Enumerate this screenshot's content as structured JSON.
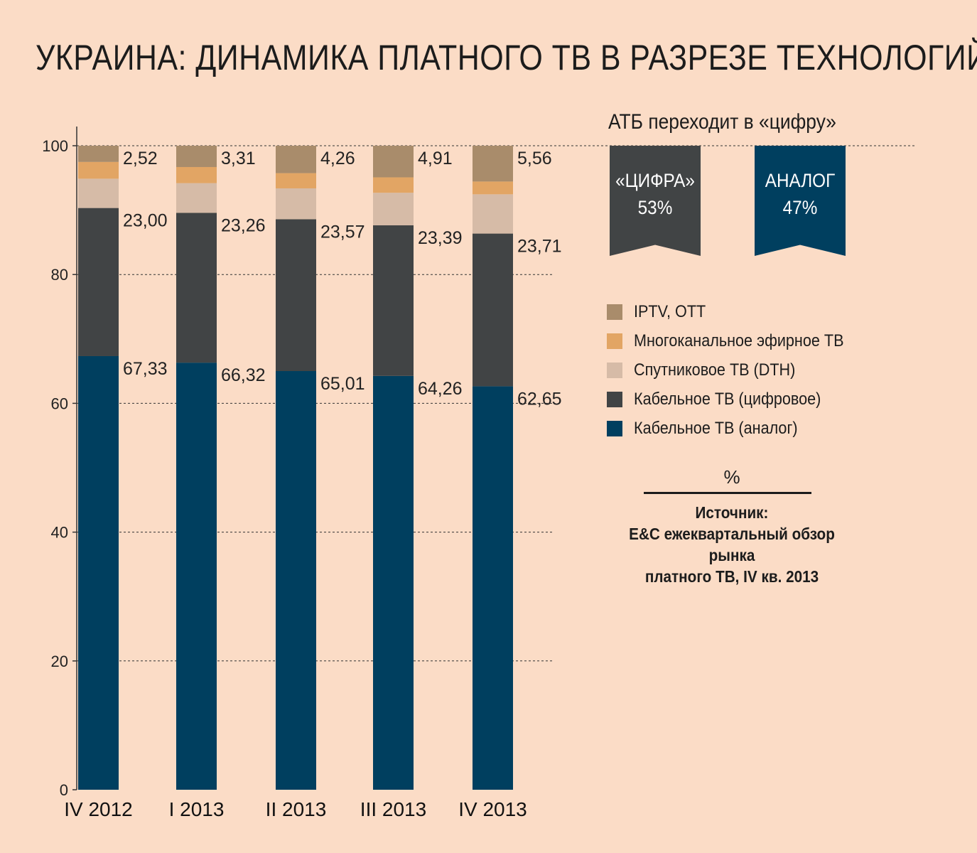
{
  "title": "УКРАИНА: ДИНАМИКА ПЛАТНОГО ТВ В РАЗРЕЗЕ ТЕХНОЛОГИЙ",
  "side_heading": "АТБ переходит в «цифру»",
  "ribbons": {
    "digital": {
      "label": "«ЦИФРА»",
      "value": "53%",
      "color": "#414445"
    },
    "analog": {
      "label": "АНАЛОГ",
      "value": "47%",
      "color": "#003f5f"
    }
  },
  "unit": "%",
  "source": {
    "label": "Источник:",
    "line1": "E&C ежеквартальный обзор рынка",
    "line2": "платного ТВ, IV кв. 2013"
  },
  "chart_data": {
    "type": "bar",
    "stacked": true,
    "categories": [
      "IV 2012",
      "I 2013",
      "II 2013",
      "III 2013",
      "IV 2013"
    ],
    "ylim": [
      0,
      100
    ],
    "yticks": [
      0,
      20,
      40,
      60,
      80,
      100
    ],
    "grid": "dashed horizontal",
    "legend": "right",
    "series": [
      {
        "name": "Кабельное ТВ (аналог)",
        "color": "#003f5f",
        "values": [
          67.33,
          66.32,
          65.01,
          64.26,
          62.65
        ],
        "labels": [
          "67,33",
          "66,32",
          "65,01",
          "64,26",
          "62,65"
        ]
      },
      {
        "name": "Кабельное ТВ (цифровое)",
        "color": "#414445",
        "values": [
          23.0,
          23.26,
          23.57,
          23.39,
          23.71
        ],
        "labels": [
          "23,00",
          "23,26",
          "23,57",
          "23,39",
          "23,71"
        ]
      },
      {
        "name": "Спутниковое ТВ (DTH)",
        "color": "#d6bba7",
        "values": [
          4.55,
          4.61,
          4.8,
          5.05,
          6.1
        ]
      },
      {
        "name": "Многоканальное эфирное ТВ",
        "color": "#e2a564",
        "values": [
          2.6,
          2.5,
          2.36,
          2.39,
          1.98
        ]
      },
      {
        "name": "IPTV,  OTT",
        "color": "#a98c6b",
        "values": [
          2.52,
          3.31,
          4.26,
          4.91,
          5.56
        ],
        "labels": [
          "2,52",
          "3,31",
          "4,26",
          "4,91",
          "5,56"
        ]
      }
    ]
  }
}
